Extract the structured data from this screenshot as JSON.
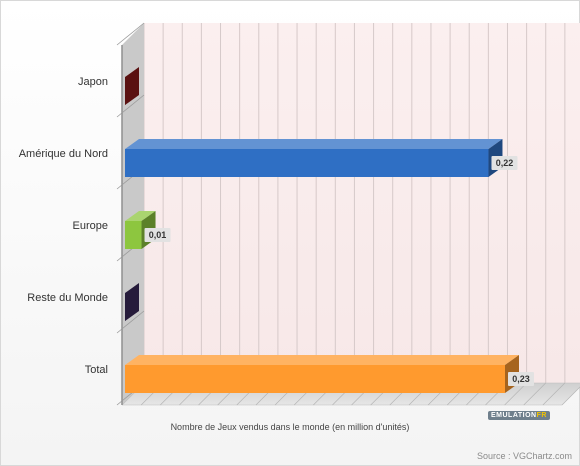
{
  "chart_data": {
    "type": "bar",
    "orientation": "horizontal",
    "categories": [
      "Japon",
      "Amérique du Nord",
      "Europe",
      "Reste du Monde",
      "Total"
    ],
    "values": [
      0,
      0.22,
      0.01,
      0,
      0.23
    ],
    "value_labels": [
      "",
      "0,22",
      "0,01",
      "",
      "0,23"
    ],
    "colors": [
      "#8b1a1a",
      "#2f6fc4",
      "#8dc63f",
      "#3b2a5a",
      "#ff9a2e"
    ],
    "xlabel": "Nombre de Jeux vendus dans le monde (en million d'unités)",
    "xlim": [
      0,
      0.23
    ],
    "grid": true,
    "source": "Source : VGChartz.com"
  },
  "logo": {
    "part1": "EMULATION",
    "part2": "FR"
  }
}
